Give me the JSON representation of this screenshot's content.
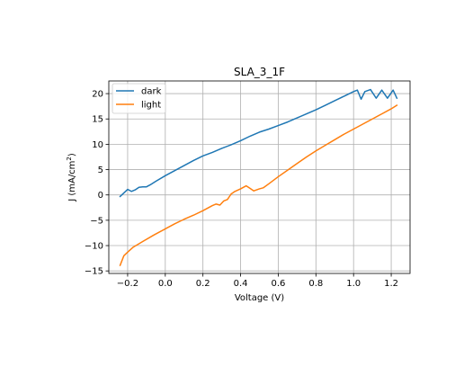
{
  "chart_data": {
    "type": "line",
    "title": "SLA_3_1F",
    "xlabel": "Voltage (V)",
    "ylabel_main": "J (mA/cm",
    "ylabel_sup": "2",
    "ylabel_end": ")",
    "xlim": [
      -0.3,
      1.3
    ],
    "ylim": [
      -15.5,
      22.5
    ],
    "grid": true,
    "legend_placement": "top-left",
    "xticks": [
      -0.2,
      0.0,
      0.2,
      0.4,
      0.6,
      0.8,
      1.0,
      1.2
    ],
    "xtick_labels": [
      "−0.2",
      "0.0",
      "0.2",
      "0.4",
      "0.6",
      "0.8",
      "1.0",
      "1.2"
    ],
    "yticks": [
      -15,
      -10,
      -5,
      0,
      5,
      10,
      15,
      20
    ],
    "ytick_labels": [
      "−15",
      "−10",
      "−5",
      "0",
      "5",
      "10",
      "15",
      "20"
    ],
    "series": [
      {
        "name": "dark",
        "color": "#1f77b4",
        "x": [
          -0.24,
          -0.2,
          -0.18,
          -0.16,
          -0.14,
          -0.12,
          -0.1,
          -0.08,
          -0.05,
          0.0,
          0.05,
          0.1,
          0.15,
          0.2,
          0.25,
          0.3,
          0.35,
          0.4,
          0.45,
          0.5,
          0.55,
          0.6,
          0.65,
          0.7,
          0.75,
          0.8,
          0.85,
          0.9,
          0.95,
          1.0,
          1.02,
          1.04,
          1.06,
          1.09,
          1.12,
          1.15,
          1.18,
          1.21,
          1.23
        ],
        "y": [
          -0.3,
          1.1,
          0.7,
          1.0,
          1.5,
          1.6,
          1.6,
          2.0,
          2.7,
          3.8,
          4.8,
          5.8,
          6.8,
          7.7,
          8.4,
          9.2,
          9.9,
          10.7,
          11.6,
          12.4,
          13.0,
          13.7,
          14.4,
          15.2,
          16.0,
          16.8,
          17.7,
          18.6,
          19.5,
          20.4,
          20.7,
          18.9,
          20.4,
          20.8,
          19.1,
          20.7,
          19.1,
          20.7,
          19.1
        ]
      },
      {
        "name": "light",
        "color": "#ff7f0e",
        "x": [
          -0.24,
          -0.22,
          -0.2,
          -0.17,
          -0.12,
          -0.06,
          0.0,
          0.05,
          0.1,
          0.15,
          0.2,
          0.23,
          0.25,
          0.27,
          0.29,
          0.31,
          0.33,
          0.35,
          0.37,
          0.4,
          0.43,
          0.45,
          0.47,
          0.5,
          0.52,
          0.55,
          0.6,
          0.65,
          0.7,
          0.75,
          0.8,
          0.85,
          0.9,
          0.95,
          1.0,
          1.05,
          1.1,
          1.15,
          1.2,
          1.23
        ],
        "y": [
          -13.9,
          -12.0,
          -11.3,
          -10.3,
          -9.2,
          -7.9,
          -6.7,
          -5.7,
          -4.8,
          -4.0,
          -3.1,
          -2.5,
          -2.1,
          -1.8,
          -2.0,
          -1.2,
          -0.9,
          0.2,
          0.7,
          1.2,
          1.8,
          1.3,
          0.8,
          1.2,
          1.4,
          2.2,
          3.6,
          4.9,
          6.2,
          7.5,
          8.7,
          9.8,
          10.9,
          12.0,
          13.0,
          14.0,
          15.0,
          16.0,
          17.0,
          17.7
        ]
      }
    ]
  }
}
